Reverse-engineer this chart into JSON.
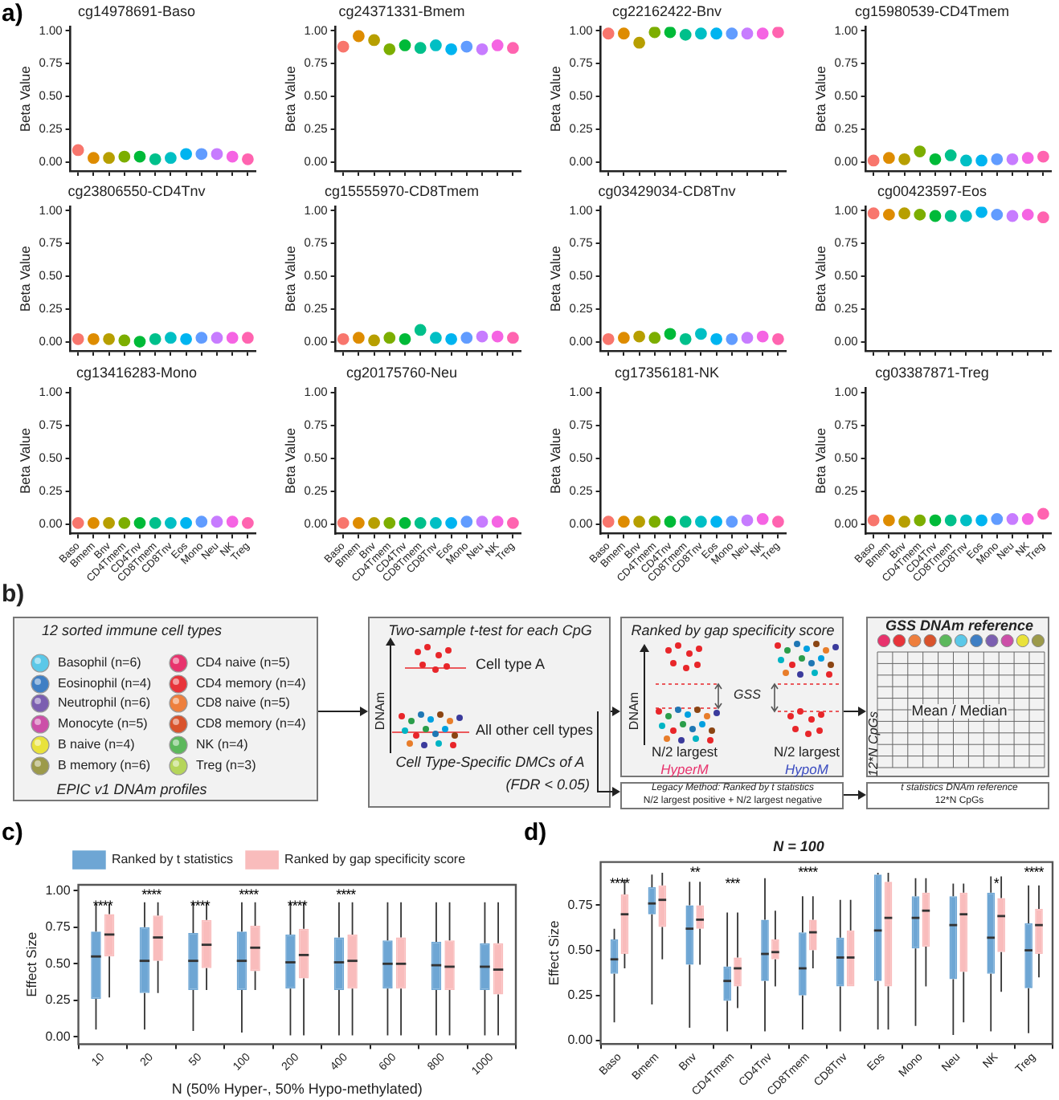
{
  "chart_data": [
    {
      "type": "scatter",
      "title": "cg14978691-Baso",
      "ylabel": "Beta Value",
      "annotations": [
        "a)"
      ],
      "categories": [
        null,
        null,
        null,
        null,
        null,
        null,
        null,
        null,
        null,
        null,
        null,
        null
      ],
      "values": [
        0.09,
        0.03,
        0.03,
        0.04,
        0.04,
        0.02,
        0.03,
        0.06,
        0.06,
        0.06,
        0.04,
        0.02
      ],
      "colors": [
        "#f8766d",
        "#de8c00",
        "#b79f00",
        "#7cae00",
        "#00ba38",
        "#00c08b",
        "#00bfc4",
        "#00b4f0",
        "#619cff",
        "#c77cff",
        "#f564e3",
        "#ff64b0"
      ],
      "ylim": [
        -0.07,
        1.03
      ],
      "yticks": [
        {
          "value": 0,
          "label": "0.00"
        },
        {
          "value": 0.25,
          "label": "0.25"
        },
        {
          "value": 0.5,
          "label": "0.50"
        },
        {
          "value": 0.75,
          "label": "0.75"
        },
        {
          "value": 1,
          "label": "1.00"
        }
      ],
      "marker": "circle",
      "tick_labels": "y"
    },
    {
      "type": "scatter",
      "title": "cg24371331-Bmem",
      "ylabel": "Beta Value",
      "categories": [
        null,
        null,
        null,
        null,
        null,
        null,
        null,
        null,
        null,
        null,
        null,
        null
      ],
      "values": [
        0.88,
        0.96,
        0.93,
        0.86,
        0.89,
        0.87,
        0.89,
        0.86,
        0.88,
        0.86,
        0.89,
        0.87
      ],
      "colors": [
        "#f8766d",
        "#de8c00",
        "#b79f00",
        "#7cae00",
        "#00ba38",
        "#00c08b",
        "#00bfc4",
        "#00b4f0",
        "#619cff",
        "#c77cff",
        "#f564e3",
        "#ff64b0"
      ],
      "ylim": [
        -0.07,
        1.03
      ],
      "yticks": [
        {
          "value": 0,
          "label": "0.00"
        },
        {
          "value": 0.25,
          "label": "0.25"
        },
        {
          "value": 0.5,
          "label": "0.50"
        },
        {
          "value": 0.75,
          "label": "0.75"
        },
        {
          "value": 1,
          "label": "1.00"
        }
      ],
      "marker": "circle",
      "tick_labels": "y"
    },
    {
      "type": "scatter",
      "title": "cg22162422-Bnv",
      "ylabel": "Beta Value",
      "categories": [
        null,
        null,
        null,
        null,
        null,
        null,
        null,
        null,
        null,
        null,
        null,
        null
      ],
      "values": [
        0.98,
        0.98,
        0.91,
        0.99,
        0.99,
        0.97,
        0.98,
        0.98,
        0.98,
        0.98,
        0.98,
        0.99
      ],
      "colors": [
        "#f8766d",
        "#de8c00",
        "#b79f00",
        "#7cae00",
        "#00ba38",
        "#00c08b",
        "#00bfc4",
        "#00b4f0",
        "#619cff",
        "#c77cff",
        "#f564e3",
        "#ff64b0"
      ],
      "ylim": [
        -0.07,
        1.03
      ],
      "yticks": [
        {
          "value": 0,
          "label": "0.00"
        },
        {
          "value": 0.25,
          "label": "0.25"
        },
        {
          "value": 0.5,
          "label": "0.50"
        },
        {
          "value": 0.75,
          "label": "0.75"
        },
        {
          "value": 1,
          "label": "1.00"
        }
      ],
      "marker": "circle",
      "tick_labels": "y"
    },
    {
      "type": "scatter",
      "title": "cg15980539-CD4Tmem",
      "ylabel": "Beta Value",
      "categories": [
        null,
        null,
        null,
        null,
        null,
        null,
        null,
        null,
        null,
        null,
        null,
        null
      ],
      "values": [
        0.01,
        0.03,
        0.02,
        0.08,
        0.02,
        0.05,
        0.01,
        0.01,
        0.02,
        0.02,
        0.03,
        0.04
      ],
      "colors": [
        "#f8766d",
        "#de8c00",
        "#b79f00",
        "#7cae00",
        "#00ba38",
        "#00c08b",
        "#00bfc4",
        "#00b4f0",
        "#619cff",
        "#c77cff",
        "#f564e3",
        "#ff64b0"
      ],
      "ylim": [
        -0.07,
        1.03
      ],
      "yticks": [
        {
          "value": 0,
          "label": "0.00"
        },
        {
          "value": 0.25,
          "label": "0.25"
        },
        {
          "value": 0.5,
          "label": "0.50"
        },
        {
          "value": 0.75,
          "label": "0.75"
        },
        {
          "value": 1,
          "label": "1.00"
        }
      ],
      "marker": "circle",
      "tick_labels": "y"
    },
    {
      "type": "scatter",
      "title": "cg23806550-CD4Tnv",
      "ylabel": "Beta Value",
      "categories": [
        null,
        null,
        null,
        null,
        null,
        null,
        null,
        null,
        null,
        null,
        null,
        null
      ],
      "values": [
        0.02,
        0.02,
        0.02,
        0.01,
        0.0,
        0.02,
        0.03,
        0.02,
        0.03,
        0.03,
        0.03,
        0.03
      ],
      "colors": [
        "#f8766d",
        "#de8c00",
        "#b79f00",
        "#7cae00",
        "#00ba38",
        "#00c08b",
        "#00bfc4",
        "#00b4f0",
        "#619cff",
        "#c77cff",
        "#f564e3",
        "#ff64b0"
      ],
      "ylim": [
        -0.07,
        1.03
      ],
      "yticks": [
        {
          "value": 0,
          "label": "0.00"
        },
        {
          "value": 0.25,
          "label": "0.25"
        },
        {
          "value": 0.5,
          "label": "0.50"
        },
        {
          "value": 0.75,
          "label": "0.75"
        },
        {
          "value": 1,
          "label": "1.00"
        }
      ],
      "marker": "circle",
      "tick_labels": "y"
    },
    {
      "type": "scatter",
      "title": "cg15555970-CD8Tmem",
      "ylabel": "Beta Value",
      "categories": [
        null,
        null,
        null,
        null,
        null,
        null,
        null,
        null,
        null,
        null,
        null,
        null
      ],
      "values": [
        0.02,
        0.03,
        0.01,
        0.03,
        0.02,
        0.09,
        0.03,
        0.02,
        0.03,
        0.04,
        0.04,
        0.03
      ],
      "colors": [
        "#f8766d",
        "#de8c00",
        "#b79f00",
        "#7cae00",
        "#00ba38",
        "#00c08b",
        "#00bfc4",
        "#00b4f0",
        "#619cff",
        "#c77cff",
        "#f564e3",
        "#ff64b0"
      ],
      "ylim": [
        -0.07,
        1.03
      ],
      "yticks": [
        {
          "value": 0,
          "label": "0.00"
        },
        {
          "value": 0.25,
          "label": "0.25"
        },
        {
          "value": 0.5,
          "label": "0.50"
        },
        {
          "value": 0.75,
          "label": "0.75"
        },
        {
          "value": 1,
          "label": "1.00"
        }
      ],
      "marker": "circle",
      "tick_labels": "y"
    },
    {
      "type": "scatter",
      "title": "cg03429034-CD8Tnv",
      "ylabel": "Beta Value",
      "categories": [
        null,
        null,
        null,
        null,
        null,
        null,
        null,
        null,
        null,
        null,
        null,
        null
      ],
      "values": [
        0.02,
        0.03,
        0.04,
        0.03,
        0.06,
        0.02,
        0.06,
        0.02,
        0.02,
        0.03,
        0.04,
        0.02
      ],
      "colors": [
        "#f8766d",
        "#de8c00",
        "#b79f00",
        "#7cae00",
        "#00ba38",
        "#00c08b",
        "#00bfc4",
        "#00b4f0",
        "#619cff",
        "#c77cff",
        "#f564e3",
        "#ff64b0"
      ],
      "ylim": [
        -0.07,
        1.03
      ],
      "yticks": [
        {
          "value": 0,
          "label": "0.00"
        },
        {
          "value": 0.25,
          "label": "0.25"
        },
        {
          "value": 0.5,
          "label": "0.50"
        },
        {
          "value": 0.75,
          "label": "0.75"
        },
        {
          "value": 1,
          "label": "1.00"
        }
      ],
      "marker": "circle",
      "tick_labels": "y"
    },
    {
      "type": "scatter",
      "title": "cg00423597-Eos",
      "ylabel": "Beta Value",
      "categories": [
        null,
        null,
        null,
        null,
        null,
        null,
        null,
        null,
        null,
        null,
        null,
        null
      ],
      "values": [
        0.98,
        0.97,
        0.98,
        0.97,
        0.96,
        0.96,
        0.96,
        0.99,
        0.97,
        0.96,
        0.97,
        0.95
      ],
      "colors": [
        "#f8766d",
        "#de8c00",
        "#b79f00",
        "#7cae00",
        "#00ba38",
        "#00c08b",
        "#00bfc4",
        "#00b4f0",
        "#619cff",
        "#c77cff",
        "#f564e3",
        "#ff64b0"
      ],
      "ylim": [
        -0.07,
        1.03
      ],
      "yticks": [
        {
          "value": 0,
          "label": "0.00"
        },
        {
          "value": 0.25,
          "label": "0.25"
        },
        {
          "value": 0.5,
          "label": "0.50"
        },
        {
          "value": 0.75,
          "label": "0.75"
        },
        {
          "value": 1,
          "label": "1.00"
        }
      ],
      "marker": "circle",
      "tick_labels": "y"
    },
    {
      "type": "scatter",
      "title": "cg13416283-Mono",
      "ylabel": "Beta Value",
      "categories": [
        "Baso",
        "Bmem",
        "Bnv",
        "CD4Tmem",
        "CD4Tnv",
        "CD8Tmem",
        "CD8Tnv",
        "Eos",
        "Mono",
        "Neu",
        "NK",
        "Treg"
      ],
      "values": [
        0.01,
        0.01,
        0.01,
        0.01,
        0.01,
        0.01,
        0.01,
        0.01,
        0.02,
        0.02,
        0.02,
        0.01
      ],
      "colors": [
        "#f8766d",
        "#de8c00",
        "#b79f00",
        "#7cae00",
        "#00ba38",
        "#00c08b",
        "#00bfc4",
        "#00b4f0",
        "#619cff",
        "#c77cff",
        "#f564e3",
        "#ff64b0"
      ],
      "ylim": [
        -0.07,
        1.03
      ],
      "yticks": [
        {
          "value": 0,
          "label": "0.00"
        },
        {
          "value": 0.25,
          "label": "0.25"
        },
        {
          "value": 0.5,
          "label": "0.50"
        },
        {
          "value": 0.75,
          "label": "0.75"
        },
        {
          "value": 1,
          "label": "1.00"
        }
      ],
      "marker": "circle"
    },
    {
      "type": "scatter",
      "title": "cg20175760-Neu",
      "ylabel": "Beta Value",
      "categories": [
        "Baso",
        "Bmem",
        "Bnv",
        "CD4Tmem",
        "CD4Tnv",
        "CD8Tmem",
        "CD8Tnv",
        "Eos",
        "Mono",
        "Neu",
        "NK",
        "Treg"
      ],
      "values": [
        0.01,
        0.01,
        0.01,
        0.01,
        0.01,
        0.01,
        0.01,
        0.01,
        0.02,
        0.02,
        0.02,
        0.01
      ],
      "colors": [
        "#f8766d",
        "#de8c00",
        "#b79f00",
        "#7cae00",
        "#00ba38",
        "#00c08b",
        "#00bfc4",
        "#00b4f0",
        "#619cff",
        "#c77cff",
        "#f564e3",
        "#ff64b0"
      ],
      "ylim": [
        -0.07,
        1.03
      ],
      "yticks": [
        {
          "value": 0,
          "label": "0.00"
        },
        {
          "value": 0.25,
          "label": "0.25"
        },
        {
          "value": 0.5,
          "label": "0.50"
        },
        {
          "value": 0.75,
          "label": "0.75"
        },
        {
          "value": 1,
          "label": "1.00"
        }
      ],
      "marker": "circle"
    },
    {
      "type": "scatter",
      "title": "cg17356181-NK",
      "ylabel": "Beta Value",
      "categories": [
        "Baso",
        "Bmem",
        "Bnv",
        "CD4Tmem",
        "CD4Tnv",
        "CD8Tmem",
        "CD8Tnv",
        "Eos",
        "Mono",
        "Neu",
        "NK",
        "Treg"
      ],
      "values": [
        0.02,
        0.02,
        0.02,
        0.02,
        0.02,
        0.02,
        0.02,
        0.02,
        0.02,
        0.03,
        0.04,
        0.02
      ],
      "colors": [
        "#f8766d",
        "#de8c00",
        "#b79f00",
        "#7cae00",
        "#00ba38",
        "#00c08b",
        "#00bfc4",
        "#00b4f0",
        "#619cff",
        "#c77cff",
        "#f564e3",
        "#ff64b0"
      ],
      "ylim": [
        -0.07,
        1.03
      ],
      "yticks": [
        {
          "value": 0,
          "label": "0.00"
        },
        {
          "value": 0.25,
          "label": "0.25"
        },
        {
          "value": 0.5,
          "label": "0.50"
        },
        {
          "value": 0.75,
          "label": "0.75"
        },
        {
          "value": 1,
          "label": "1.00"
        }
      ],
      "marker": "circle"
    },
    {
      "type": "scatter",
      "title": "cg03387871-Treg",
      "ylabel": "Beta Value",
      "categories": [
        "Baso",
        "Bmem",
        "Bnv",
        "CD4Tmem",
        "CD4Tnv",
        "CD8Tmem",
        "CD8Tnv",
        "Eos",
        "Mono",
        "Neu",
        "NK",
        "Treg"
      ],
      "values": [
        0.03,
        0.03,
        0.02,
        0.03,
        0.03,
        0.03,
        0.03,
        0.03,
        0.04,
        0.04,
        0.04,
        0.08
      ],
      "colors": [
        "#f8766d",
        "#de8c00",
        "#b79f00",
        "#7cae00",
        "#00ba38",
        "#00c08b",
        "#00bfc4",
        "#00b4f0",
        "#619cff",
        "#c77cff",
        "#f564e3",
        "#ff64b0"
      ],
      "ylim": [
        -0.07,
        1.03
      ],
      "yticks": [
        {
          "value": 0,
          "label": "0.00"
        },
        {
          "value": 0.25,
          "label": "0.25"
        },
        {
          "value": 0.5,
          "label": "0.50"
        },
        {
          "value": 0.75,
          "label": "0.75"
        },
        {
          "value": 1,
          "label": "1.00"
        }
      ],
      "marker": "circle"
    },
    {
      "type": "other",
      "annotations": [
        "b)",
        "12 sorted immune cell types",
        "Basophil (n=6)",
        "Eosinophil (n=4)",
        "Neutrophil (n=6)",
        "Monocyte (n=5)",
        "B naive (n=4)",
        "B memory (n=6)",
        "CD4 naive (n=5)",
        "CD4 memory (n=4)",
        "CD8 naive (n=5)",
        "CD8 memory (n=4)",
        "NK (n=4)",
        "Treg (n=3)",
        "EPIC v1 DNAm profiles",
        "Two-sample t-test for each CpG",
        "DNAm",
        "Cell type A",
        "All other cell types",
        "Cell Type-Specific DMCs of A",
        "(FDR < 0.05)",
        "Ranked by gap specificity score",
        "DNAm",
        "GSS",
        "N/2 largest",
        "HyperM",
        "N/2 largest",
        "HypoM",
        "GSS DNAm reference",
        "12*N CpGs",
        "Mean / Median",
        "Legacy Method: Ranked by t statistics",
        "N/2 largest positive + N/2 largest negative",
        "t statistics DNAm reference",
        "12*N CpGs"
      ]
    },
    {
      "type": "box",
      "xlabel": "N (50% Hyper-, 50% Hypo-methylated)",
      "ylabel": "Effect Size",
      "legend": "top",
      "annotations": [
        "c)",
        "****",
        "****",
        "****",
        "****",
        "****",
        "****"
      ],
      "categories": [
        "10",
        "20",
        "50",
        "100",
        "200",
        "400",
        "600",
        "800",
        "1000"
      ],
      "series": [
        {
          "name": "Ranked by t statistics",
          "color": "#6ea6d4",
          "boxes": [
            {
              "low": 0.05,
              "q1": 0.26,
              "median": 0.55,
              "q3": 0.72,
              "high": 0.91
            },
            {
              "low": 0.05,
              "q1": 0.3,
              "median": 0.52,
              "q3": 0.75,
              "high": 0.92
            },
            {
              "low": 0.04,
              "q1": 0.32,
              "median": 0.52,
              "q3": 0.71,
              "high": 0.92
            },
            {
              "low": 0.03,
              "q1": 0.32,
              "median": 0.52,
              "q3": 0.72,
              "high": 0.92
            },
            {
              "low": 0.01,
              "q1": 0.33,
              "median": 0.51,
              "q3": 0.7,
              "high": 0.92
            },
            {
              "low": 0.01,
              "q1": 0.32,
              "median": 0.51,
              "q3": 0.68,
              "high": 0.92
            },
            {
              "low": 0.01,
              "q1": 0.33,
              "median": 0.5,
              "q3": 0.66,
              "high": 0.92
            },
            {
              "low": 0.01,
              "q1": 0.32,
              "median": 0.49,
              "q3": 0.65,
              "high": 0.92
            },
            {
              "low": 0.01,
              "q1": 0.32,
              "median": 0.48,
              "q3": 0.64,
              "high": 0.92
            }
          ]
        },
        {
          "name": "Ranked by gap specificity score",
          "color": "#f9bcbc",
          "boxes": [
            {
              "low": 0.27,
              "q1": 0.55,
              "median": 0.7,
              "q3": 0.84,
              "high": 0.91
            },
            {
              "low": 0.3,
              "q1": 0.52,
              "median": 0.68,
              "q3": 0.83,
              "high": 0.92
            },
            {
              "low": 0.32,
              "q1": 0.47,
              "median": 0.63,
              "q3": 0.8,
              "high": 0.92
            },
            {
              "low": 0.32,
              "q1": 0.45,
              "median": 0.61,
              "q3": 0.76,
              "high": 0.92
            },
            {
              "low": 0.01,
              "q1": 0.4,
              "median": 0.56,
              "q3": 0.74,
              "high": 0.92
            },
            {
              "low": 0.01,
              "q1": 0.33,
              "median": 0.52,
              "q3": 0.7,
              "high": 0.92
            },
            {
              "low": 0.01,
              "q1": 0.33,
              "median": 0.5,
              "q3": 0.68,
              "high": 0.92
            },
            {
              "low": 0.01,
              "q1": 0.32,
              "median": 0.48,
              "q3": 0.66,
              "high": 0.92
            },
            {
              "low": 0.01,
              "q1": 0.29,
              "median": 0.46,
              "q3": 0.64,
              "high": 0.92
            }
          ]
        }
      ],
      "ylim": [
        -0.05,
        1.04
      ],
      "yticks": [
        {
          "value": 0,
          "label": "0.00"
        },
        {
          "value": 0.25,
          "label": "0.25"
        },
        {
          "value": 0.5,
          "label": "0.50"
        },
        {
          "value": 0.75,
          "label": "0.75"
        },
        {
          "value": 1,
          "label": "1.00"
        }
      ]
    },
    {
      "type": "box",
      "title": "N = 100",
      "ylabel": "Effect Size",
      "annotations": [
        "d)",
        "****",
        "**",
        "***",
        "****",
        "*",
        "****"
      ],
      "categories": [
        "Baso",
        "Bmem",
        "Bnv",
        "CD4Tmem",
        "CD4Tnv",
        "CD8Tmem",
        "CD8Tnv",
        "Eos",
        "Mono",
        "Neu",
        "NK",
        "Treg"
      ],
      "series": [
        {
          "color": "#6ea6d4",
          "boxes": [
            {
              "low": 0.1,
              "q1": 0.37,
              "median": 0.45,
              "q3": 0.56,
              "high": 0.62
            },
            {
              "low": 0.2,
              "q1": 0.7,
              "median": 0.76,
              "q3": 0.85,
              "high": 0.92
            },
            {
              "low": 0.07,
              "q1": 0.42,
              "median": 0.62,
              "q3": 0.75,
              "high": 0.88
            },
            {
              "low": 0.05,
              "q1": 0.22,
              "median": 0.33,
              "q3": 0.41,
              "high": 0.71
            },
            {
              "low": 0.05,
              "q1": 0.33,
              "median": 0.48,
              "q3": 0.67,
              "high": 0.9
            },
            {
              "low": 0.06,
              "q1": 0.25,
              "median": 0.4,
              "q3": 0.6,
              "high": 0.8
            },
            {
              "low": 0.05,
              "q1": 0.3,
              "median": 0.46,
              "q3": 0.57,
              "high": 0.78
            },
            {
              "low": 0.06,
              "q1": 0.33,
              "median": 0.61,
              "q3": 0.92,
              "high": 0.93
            },
            {
              "low": 0.08,
              "q1": 0.51,
              "median": 0.68,
              "q3": 0.8,
              "high": 0.9
            },
            {
              "low": 0.03,
              "q1": 0.34,
              "median": 0.64,
              "q3": 0.8,
              "high": 0.87
            },
            {
              "low": 0.05,
              "q1": 0.37,
              "median": 0.57,
              "q3": 0.82,
              "high": 0.91
            },
            {
              "low": 0.04,
              "q1": 0.29,
              "median": 0.5,
              "q3": 0.65,
              "high": 0.86
            }
          ]
        },
        {
          "color": "#f9bcbc",
          "boxes": [
            {
              "low": 0.4,
              "q1": 0.48,
              "median": 0.7,
              "q3": 0.81,
              "high": 0.89
            },
            {
              "low": 0.45,
              "q1": 0.63,
              "median": 0.78,
              "q3": 0.86,
              "high": 0.93
            },
            {
              "low": 0.42,
              "q1": 0.62,
              "median": 0.67,
              "q3": 0.75,
              "high": 0.88
            },
            {
              "low": 0.18,
              "q1": 0.3,
              "median": 0.4,
              "q3": 0.46,
              "high": 0.71
            },
            {
              "low": 0.3,
              "q1": 0.45,
              "median": 0.49,
              "q3": 0.56,
              "high": 0.72
            },
            {
              "low": 0.4,
              "q1": 0.5,
              "median": 0.6,
              "q3": 0.67,
              "high": 0.8
            },
            {
              "low": 0.3,
              "q1": 0.3,
              "median": 0.46,
              "q3": 0.61,
              "high": 0.78
            },
            {
              "low": 0.06,
              "q1": 0.3,
              "median": 0.68,
              "q3": 0.88,
              "high": 0.93
            },
            {
              "low": 0.3,
              "q1": 0.52,
              "median": 0.72,
              "q3": 0.82,
              "high": 0.9
            },
            {
              "low": 0.1,
              "q1": 0.38,
              "median": 0.7,
              "q3": 0.82,
              "high": 0.87
            },
            {
              "low": 0.27,
              "q1": 0.49,
              "median": 0.69,
              "q3": 0.79,
              "high": 0.91
            },
            {
              "low": 0.35,
              "q1": 0.48,
              "median": 0.64,
              "q3": 0.73,
              "high": 0.86
            }
          ]
        }
      ],
      "ylim": [
        -0.02,
        0.99
      ],
      "yticks": [
        {
          "value": 0,
          "label": "0.00"
        },
        {
          "value": 0.25,
          "label": "0.25"
        },
        {
          "value": 0.5,
          "label": "0.50"
        },
        {
          "value": 0.75,
          "label": "0.75"
        }
      ]
    }
  ]
}
